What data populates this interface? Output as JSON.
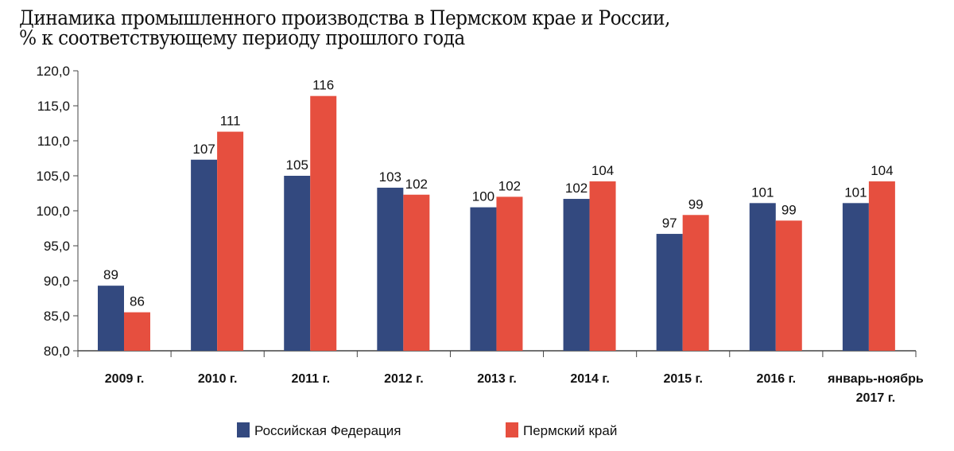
{
  "chart_data": {
    "type": "bar",
    "title_line1": "Динамика промышленного производства в Пермском крае и России,",
    "title_line2": "% к соответствующему периоду прошлого года",
    "categories": [
      [
        "2009 г."
      ],
      [
        "2010 г."
      ],
      [
        "2011 г."
      ],
      [
        "2012 г."
      ],
      [
        "2013 г."
      ],
      [
        "2014 г."
      ],
      [
        "2015 г."
      ],
      [
        "2016 г."
      ],
      [
        "январь-ноябрь",
        "2017 г."
      ]
    ],
    "ylim": [
      80,
      120
    ],
    "yticks": [
      "80,0",
      "85,0",
      "90,0",
      "95,0",
      "100,0",
      "105,0",
      "110,0",
      "115,0",
      "120,0"
    ],
    "ytick_values": [
      80,
      85,
      90,
      95,
      100,
      105,
      110,
      115,
      120
    ],
    "series": [
      {
        "name": "Российская Федерация",
        "color": "#33497f",
        "values": [
          89.3,
          107.3,
          105.0,
          103.3,
          100.5,
          101.7,
          96.7,
          101.1,
          101.1
        ],
        "labels": [
          "89",
          "107",
          "105",
          "103",
          "100",
          "102",
          "97",
          "101",
          "101"
        ]
      },
      {
        "name": "Пермский край",
        "color": "#e64f3f",
        "values": [
          85.5,
          111.3,
          116.4,
          102.3,
          102.0,
          104.2,
          99.4,
          98.6,
          104.2
        ],
        "labels": [
          "86",
          "111",
          "116",
          "102",
          "102",
          "104",
          "99",
          "99",
          "104"
        ]
      }
    ],
    "legend": "bottom",
    "grid": false
  }
}
